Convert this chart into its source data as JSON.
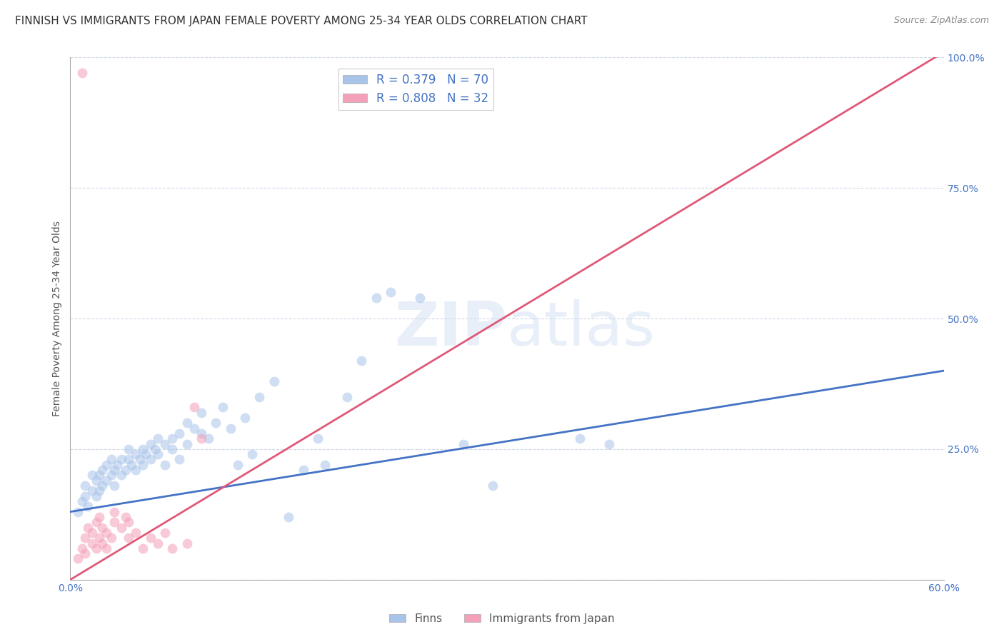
{
  "title": "FINNISH VS IMMIGRANTS FROM JAPAN FEMALE POVERTY AMONG 25-34 YEAR OLDS CORRELATION CHART",
  "source": "Source: ZipAtlas.com",
  "ylabel": "Female Poverty Among 25-34 Year Olds",
  "xlim": [
    0.0,
    0.6
  ],
  "ylim": [
    0.0,
    1.0
  ],
  "xticks": [
    0.0,
    0.1,
    0.2,
    0.3,
    0.4,
    0.5,
    0.6
  ],
  "xticklabels": [
    "0.0%",
    "",
    "",
    "",
    "",
    "",
    "60.0%"
  ],
  "yticks_right": [
    0.0,
    0.25,
    0.5,
    0.75,
    1.0
  ],
  "yticklabels_right": [
    "",
    "25.0%",
    "50.0%",
    "75.0%",
    "100.0%"
  ],
  "legend_R1": "R = 0.379",
  "legend_N1": "N = 70",
  "legend_R2": "R = 0.808",
  "legend_N2": "N = 32",
  "finns_color": "#a8c4e8",
  "japan_color": "#f4a0b8",
  "finns_line_color": "#4472c4",
  "japan_line_color": "#e05878",
  "background_color": "#ffffff",
  "grid_color": "#d0d8e8",
  "title_fontsize": 11,
  "axis_label_fontsize": 10,
  "tick_fontsize": 10,
  "dot_size": 100,
  "dot_alpha": 0.55,
  "finns_scatter": [
    [
      0.005,
      0.13
    ],
    [
      0.008,
      0.15
    ],
    [
      0.01,
      0.16
    ],
    [
      0.01,
      0.18
    ],
    [
      0.012,
      0.14
    ],
    [
      0.015,
      0.17
    ],
    [
      0.015,
      0.2
    ],
    [
      0.018,
      0.16
    ],
    [
      0.018,
      0.19
    ],
    [
      0.02,
      0.17
    ],
    [
      0.02,
      0.2
    ],
    [
      0.022,
      0.18
    ],
    [
      0.022,
      0.21
    ],
    [
      0.025,
      0.19
    ],
    [
      0.025,
      0.22
    ],
    [
      0.028,
      0.2
    ],
    [
      0.028,
      0.23
    ],
    [
      0.03,
      0.21
    ],
    [
      0.03,
      0.18
    ],
    [
      0.032,
      0.22
    ],
    [
      0.035,
      0.2
    ],
    [
      0.035,
      0.23
    ],
    [
      0.038,
      0.21
    ],
    [
      0.04,
      0.23
    ],
    [
      0.04,
      0.25
    ],
    [
      0.042,
      0.22
    ],
    [
      0.045,
      0.24
    ],
    [
      0.045,
      0.21
    ],
    [
      0.048,
      0.23
    ],
    [
      0.05,
      0.25
    ],
    [
      0.05,
      0.22
    ],
    [
      0.052,
      0.24
    ],
    [
      0.055,
      0.26
    ],
    [
      0.055,
      0.23
    ],
    [
      0.058,
      0.25
    ],
    [
      0.06,
      0.27
    ],
    [
      0.06,
      0.24
    ],
    [
      0.065,
      0.26
    ],
    [
      0.065,
      0.22
    ],
    [
      0.07,
      0.27
    ],
    [
      0.07,
      0.25
    ],
    [
      0.075,
      0.28
    ],
    [
      0.075,
      0.23
    ],
    [
      0.08,
      0.3
    ],
    [
      0.08,
      0.26
    ],
    [
      0.085,
      0.29
    ],
    [
      0.09,
      0.28
    ],
    [
      0.09,
      0.32
    ],
    [
      0.095,
      0.27
    ],
    [
      0.1,
      0.3
    ],
    [
      0.105,
      0.33
    ],
    [
      0.11,
      0.29
    ],
    [
      0.115,
      0.22
    ],
    [
      0.12,
      0.31
    ],
    [
      0.125,
      0.24
    ],
    [
      0.13,
      0.35
    ],
    [
      0.14,
      0.38
    ],
    [
      0.15,
      0.12
    ],
    [
      0.16,
      0.21
    ],
    [
      0.17,
      0.27
    ],
    [
      0.175,
      0.22
    ],
    [
      0.19,
      0.35
    ],
    [
      0.2,
      0.42
    ],
    [
      0.21,
      0.54
    ],
    [
      0.22,
      0.55
    ],
    [
      0.24,
      0.54
    ],
    [
      0.27,
      0.26
    ],
    [
      0.29,
      0.18
    ],
    [
      0.35,
      0.27
    ],
    [
      0.37,
      0.26
    ]
  ],
  "japan_scatter": [
    [
      0.005,
      0.04
    ],
    [
      0.008,
      0.06
    ],
    [
      0.01,
      0.05
    ],
    [
      0.01,
      0.08
    ],
    [
      0.012,
      0.1
    ],
    [
      0.015,
      0.07
    ],
    [
      0.015,
      0.09
    ],
    [
      0.018,
      0.11
    ],
    [
      0.018,
      0.06
    ],
    [
      0.02,
      0.08
    ],
    [
      0.02,
      0.12
    ],
    [
      0.022,
      0.07
    ],
    [
      0.022,
      0.1
    ],
    [
      0.025,
      0.09
    ],
    [
      0.025,
      0.06
    ],
    [
      0.028,
      0.08
    ],
    [
      0.03,
      0.11
    ],
    [
      0.03,
      0.13
    ],
    [
      0.035,
      0.1
    ],
    [
      0.038,
      0.12
    ],
    [
      0.04,
      0.08
    ],
    [
      0.04,
      0.11
    ],
    [
      0.045,
      0.09
    ],
    [
      0.05,
      0.06
    ],
    [
      0.055,
      0.08
    ],
    [
      0.06,
      0.07
    ],
    [
      0.065,
      0.09
    ],
    [
      0.07,
      0.06
    ],
    [
      0.08,
      0.07
    ],
    [
      0.09,
      0.27
    ],
    [
      0.008,
      0.97
    ],
    [
      0.085,
      0.33
    ]
  ],
  "finns_line_x": [
    0.0,
    0.6
  ],
  "finns_line_y": [
    0.13,
    0.4
  ],
  "japan_line_x": [
    0.0,
    0.6
  ],
  "japan_line_y": [
    0.0,
    1.01
  ]
}
